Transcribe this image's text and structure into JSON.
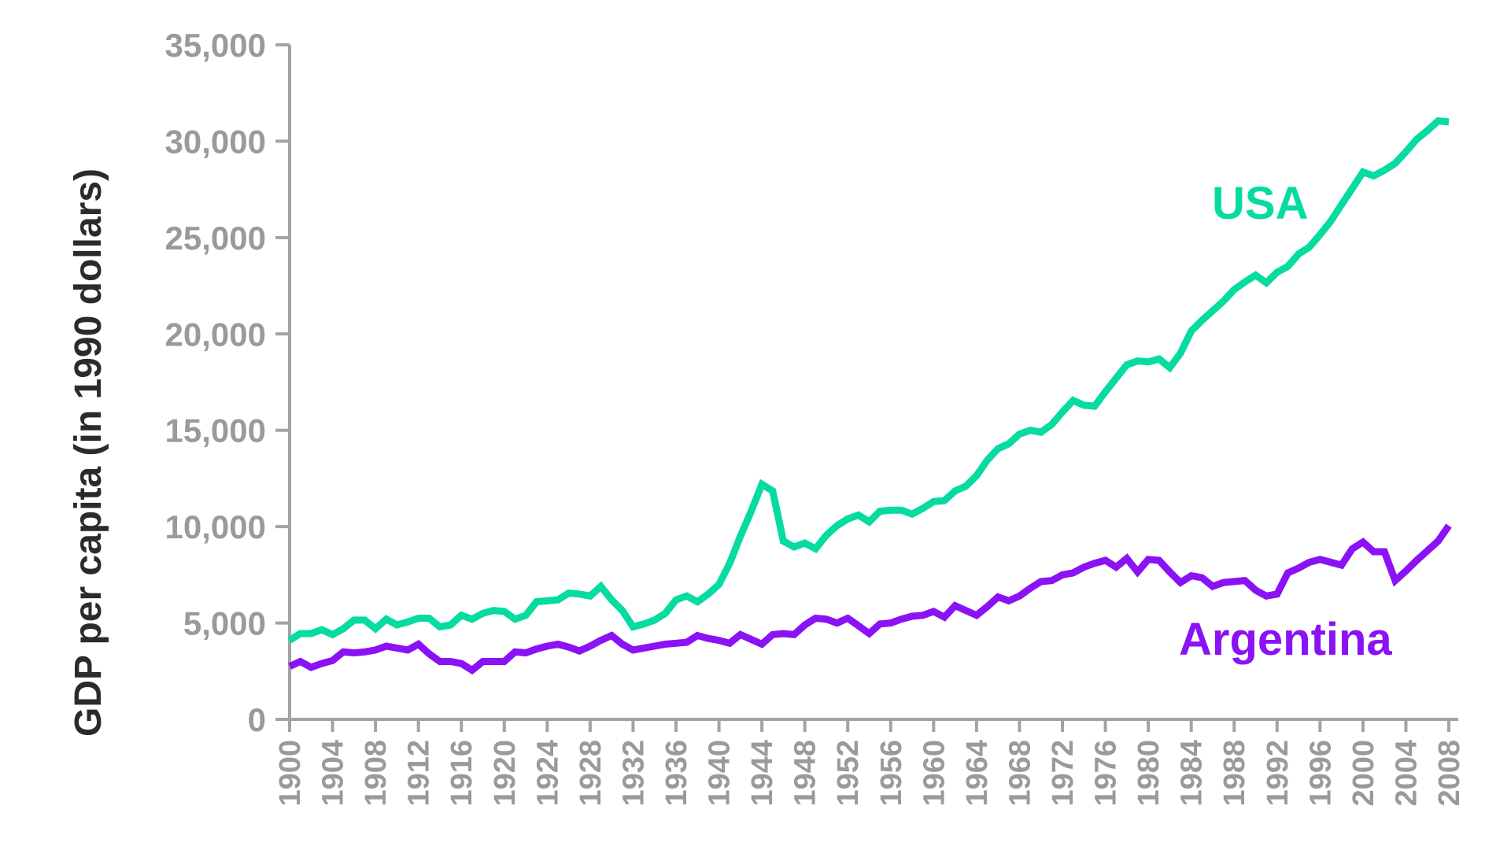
{
  "chart_data": {
    "type": "line",
    "title": "",
    "xlabel": "",
    "ylabel": "GDP per capita (in 1990 dollars)",
    "xlim": [
      1900,
      2008
    ],
    "ylim": [
      0,
      35000
    ],
    "grid": false,
    "legend": "inline labels at line ends",
    "y_ticks": [
      "0",
      "5,000",
      "10,000",
      "15,000",
      "20,000",
      "25,000",
      "30,000",
      "35,000"
    ],
    "y_tick_values": [
      0,
      5000,
      10000,
      15000,
      20000,
      25000,
      30000,
      35000
    ],
    "x_tick_labels": [
      "1900",
      "1904",
      "1908",
      "1912",
      "1916",
      "1920",
      "1924",
      "1928",
      "1932",
      "1936",
      "1940",
      "1944",
      "1948",
      "1952",
      "1956",
      "1960",
      "1964",
      "1968",
      "1972",
      "1976",
      "1980",
      "1984",
      "1988",
      "1992",
      "1996",
      "2000",
      "2004",
      "2008"
    ],
    "x_tick_values": [
      1900,
      1904,
      1908,
      1912,
      1916,
      1920,
      1924,
      1928,
      1932,
      1936,
      1940,
      1944,
      1948,
      1952,
      1956,
      1960,
      1964,
      1968,
      1972,
      1976,
      1980,
      1984,
      1988,
      1992,
      1996,
      2000,
      2004,
      2008
    ],
    "series": [
      {
        "name": "USA",
        "color": "#06dba1",
        "x": [
          1900,
          1901,
          1902,
          1903,
          1904,
          1905,
          1906,
          1907,
          1908,
          1909,
          1910,
          1911,
          1912,
          1913,
          1914,
          1915,
          1916,
          1917,
          1918,
          1919,
          1920,
          1921,
          1922,
          1923,
          1924,
          1925,
          1926,
          1927,
          1928,
          1929,
          1930,
          1931,
          1932,
          1933,
          1934,
          1935,
          1936,
          1937,
          1938,
          1939,
          1940,
          1941,
          1942,
          1943,
          1944,
          1945,
          1946,
          1947,
          1948,
          1949,
          1950,
          1951,
          1952,
          1953,
          1954,
          1955,
          1956,
          1957,
          1958,
          1959,
          1960,
          1961,
          1962,
          1963,
          1964,
          1965,
          1966,
          1967,
          1968,
          1969,
          1970,
          1971,
          1972,
          1973,
          1974,
          1975,
          1976,
          1977,
          1978,
          1979,
          1980,
          1981,
          1982,
          1983,
          1984,
          1985,
          1986,
          1987,
          1988,
          1989,
          1990,
          1991,
          1992,
          1993,
          1994,
          1995,
          1996,
          1997,
          1998,
          1999,
          2000,
          2001,
          2002,
          2003,
          2004,
          2005,
          2006,
          2007,
          2008
        ],
        "values": [
          4100,
          4450,
          4450,
          4650,
          4400,
          4700,
          5150,
          5150,
          4700,
          5200,
          4900,
          5050,
          5250,
          5250,
          4800,
          4900,
          5400,
          5200,
          5500,
          5650,
          5600,
          5200,
          5400,
          6100,
          6150,
          6200,
          6550,
          6500,
          6400,
          6900,
          6200,
          5650,
          4800,
          4950,
          5150,
          5500,
          6200,
          6400,
          6100,
          6500,
          7000,
          8100,
          9500,
          10800,
          12200,
          11850,
          9250,
          8950,
          9150,
          8850,
          9550,
          10050,
          10400,
          10600,
          10250,
          10800,
          10850,
          10850,
          10650,
          10950,
          11300,
          11350,
          11850,
          12100,
          12650,
          13450,
          14050,
          14300,
          14800,
          15000,
          14900,
          15300,
          15950,
          16550,
          16300,
          16250,
          17000,
          17700,
          18400,
          18600,
          18550,
          18700,
          18250,
          19000,
          20150,
          20700,
          21200,
          21700,
          22300,
          22700,
          23050,
          22650,
          23200,
          23500,
          24150,
          24500,
          25150,
          25850,
          26700,
          27550,
          28400,
          28200,
          28500,
          28850,
          29450,
          30100,
          30550,
          31050,
          31000
        ]
      },
      {
        "name": "Argentina",
        "color": "#8a12f5",
        "x": [
          1900,
          1901,
          1902,
          1903,
          1904,
          1905,
          1906,
          1907,
          1908,
          1909,
          1910,
          1911,
          1912,
          1913,
          1914,
          1915,
          1916,
          1917,
          1918,
          1919,
          1920,
          1921,
          1922,
          1923,
          1924,
          1925,
          1926,
          1927,
          1928,
          1929,
          1930,
          1931,
          1932,
          1933,
          1934,
          1935,
          1936,
          1937,
          1938,
          1939,
          1940,
          1941,
          1942,
          1943,
          1944,
          1945,
          1946,
          1947,
          1948,
          1949,
          1950,
          1951,
          1952,
          1953,
          1954,
          1955,
          1956,
          1957,
          1958,
          1959,
          1960,
          1961,
          1962,
          1963,
          1964,
          1965,
          1966,
          1967,
          1968,
          1969,
          1970,
          1971,
          1972,
          1973,
          1974,
          1975,
          1976,
          1977,
          1978,
          1979,
          1980,
          1981,
          1982,
          1983,
          1984,
          1985,
          1986,
          1987,
          1988,
          1989,
          1990,
          1991,
          1992,
          1993,
          1994,
          1995,
          1996,
          1997,
          1998,
          1999,
          2000,
          2001,
          2002,
          2003,
          2004,
          2005,
          2006,
          2007,
          2008
        ],
        "values": [
          2750,
          3000,
          2700,
          2900,
          3050,
          3500,
          3450,
          3500,
          3600,
          3800,
          3700,
          3600,
          3900,
          3400,
          3000,
          3000,
          2900,
          2550,
          3000,
          3000,
          3000,
          3500,
          3450,
          3650,
          3800,
          3900,
          3750,
          3550,
          3800,
          4100,
          4350,
          3900,
          3600,
          3700,
          3800,
          3900,
          3950,
          4000,
          4350,
          4200,
          4100,
          3950,
          4400,
          4150,
          3900,
          4400,
          4450,
          4400,
          4900,
          5250,
          5200,
          5000,
          5250,
          4850,
          4450,
          4950,
          5000,
          5200,
          5350,
          5400,
          5600,
          5300,
          5900,
          5650,
          5400,
          5850,
          6350,
          6150,
          6400,
          6800,
          7150,
          7200,
          7500,
          7600,
          7900,
          8100,
          8250,
          7900,
          8350,
          7650,
          8300,
          8250,
          7650,
          7100,
          7450,
          7350,
          6900,
          7100,
          7150,
          7200,
          6700,
          6400,
          6500,
          7600,
          7850,
          8150,
          8300,
          8150,
          8000,
          8850,
          9200,
          8700,
          8700,
          7200,
          7700,
          8250,
          8750,
          9250,
          10050
        ]
      }
    ],
    "annotations": [
      {
        "text": "USA",
        "color": "#06dba1"
      },
      {
        "text": "Argentina",
        "color": "#8a12f5"
      }
    ]
  }
}
